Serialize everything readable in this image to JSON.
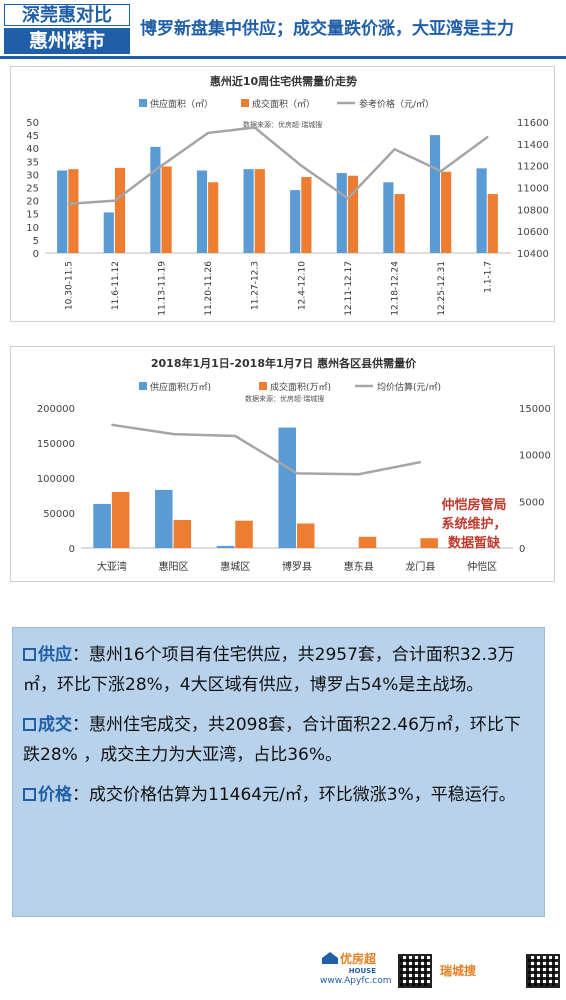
{
  "header": {
    "badge_top": "深莞惠对比",
    "badge_bottom": "惠州楼市",
    "headline": "博罗新盘集中供应；成交量跌价涨，大亚湾是主力"
  },
  "chart_data": [
    {
      "type": "bar",
      "title": "惠州近10周住宅供需量价走势",
      "source": "数据来源：优房超·瑞城搜",
      "categories": [
        "10.30-11.5",
        "11.6-11.12",
        "11.13-11.19",
        "11.20-11.26",
        "11.27-12.3",
        "12.4-12.10",
        "12.11-12.17",
        "12.18-12.24",
        "12.25-12.31",
        "1.1-1.7"
      ],
      "series": [
        {
          "name": "供应面积（㎡）",
          "type": "bar",
          "axis": "left",
          "color": "#5b9bd5",
          "values": [
            31.5,
            15.5,
            40.5,
            31.5,
            32,
            24,
            30.5,
            27,
            45,
            32.3
          ]
        },
        {
          "name": "成交面积（㎡）",
          "type": "bar",
          "axis": "left",
          "color": "#ed7d31",
          "values": [
            32,
            32.5,
            33,
            27,
            32,
            29,
            29.5,
            22.5,
            31,
            22.5
          ]
        },
        {
          "name": "参考价格（元/㎡）",
          "type": "line",
          "axis": "right",
          "color": "#a5a5a5",
          "values": [
            10850,
            10880,
            11200,
            11500,
            11550,
            11200,
            10900,
            11350,
            11150,
            11464
          ]
        }
      ],
      "ylim": [
        0,
        50
      ],
      "yticks": [
        0,
        5,
        10,
        15,
        20,
        25,
        30,
        35,
        40,
        45,
        50
      ],
      "y2lim": [
        10400,
        11600
      ],
      "y2ticks": [
        10400,
        10600,
        10800,
        11000,
        11200,
        11400,
        11600
      ],
      "legend": "top",
      "grid": false
    },
    {
      "type": "bar",
      "title": "2018年1月1日-2018年1月7日 惠州各区县供需量价",
      "source": "数据来源：优房超·瑞城搜",
      "categories": [
        "大亚湾",
        "惠阳区",
        "惠城区",
        "博罗县",
        "惠东县",
        "龙门县",
        "仲恺区"
      ],
      "series": [
        {
          "name": "供应面积(万㎡)",
          "type": "bar",
          "axis": "left",
          "color": "#5b9bd5",
          "values": [
            63000,
            83000,
            3000,
            172000,
            0,
            0,
            0
          ]
        },
        {
          "name": "成交面积(万㎡)",
          "type": "bar",
          "axis": "left",
          "color": "#ed7d31",
          "values": [
            80000,
            40000,
            39000,
            35000,
            16000,
            14000,
            0
          ]
        },
        {
          "name": "均价估算(元/㎡)",
          "type": "line",
          "axis": "right",
          "color": "#a5a5a5",
          "values": [
            13200,
            12200,
            12000,
            8000,
            7900,
            9200,
            null
          ]
        }
      ],
      "ylim": [
        0,
        200000
      ],
      "yticks": [
        0,
        50000,
        100000,
        150000,
        200000
      ],
      "y2lim": [
        0,
        15000
      ],
      "y2ticks": [
        0,
        5000,
        10000,
        15000
      ],
      "legend": "top",
      "grid": false
    }
  ],
  "note": {
    "lines": [
      "仲恺房管局",
      "系统维护，",
      "数据暂缺"
    ]
  },
  "summary": {
    "supply": {
      "key": "供应",
      "text": "：惠州16个项目有住宅供应，共2957套，合计面积32.3万㎡，环比下涨28%，4大区域有供应，博罗占54%是主战场。"
    },
    "deal": {
      "key": "成交",
      "text": "：惠州住宅成交，共2098套，合计面积22.46万㎡，环比下跌28% ，成交主力为大亚湾，占比36%。"
    },
    "price": {
      "key": "价格",
      "text": "：成交价格估算为11464元/㎡，环比微涨3%，平稳运行。"
    }
  },
  "footer": {
    "logo1": "优房超",
    "logo1_sub": "HOUSE",
    "url": "www.Apyfc.com",
    "logo2": "瑞城搜"
  }
}
